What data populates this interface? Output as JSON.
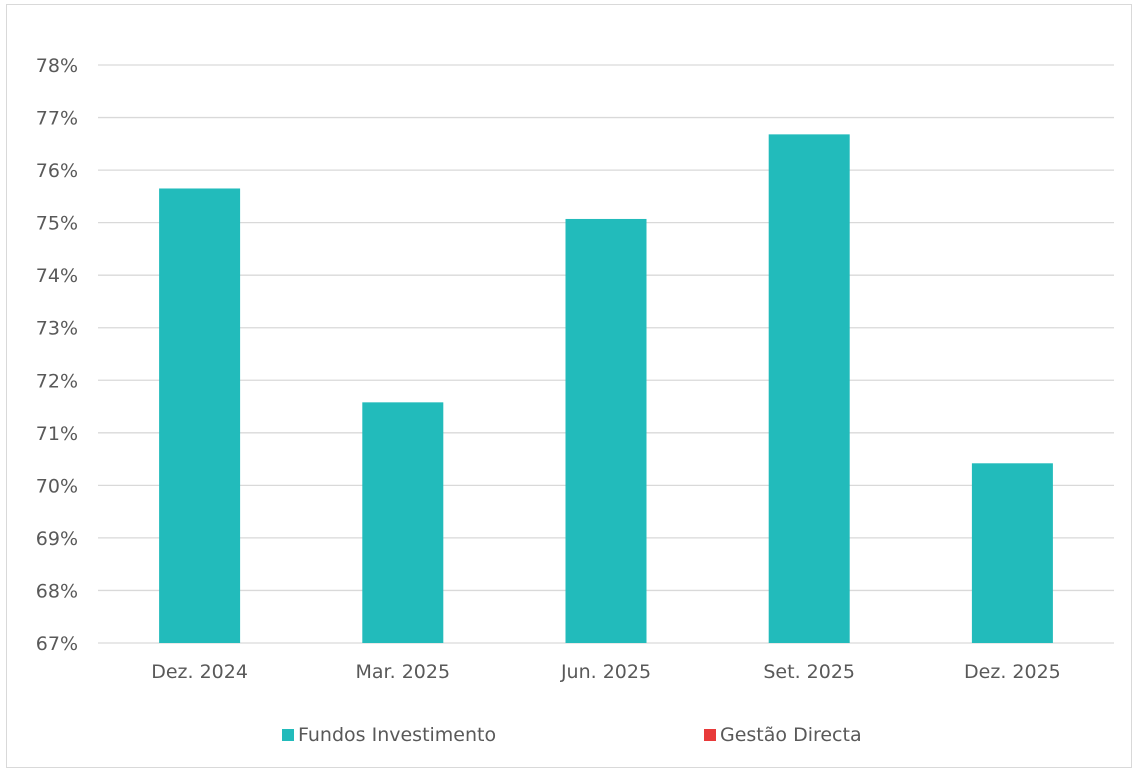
{
  "colors": {
    "background": "#ffffff",
    "gridline": "#d9d9d9",
    "axis_text": "#595959",
    "fundos": "#22bbbb",
    "gestao": "#e83a3a"
  },
  "chart_data": {
    "type": "bar",
    "title": "",
    "xlabel": "",
    "ylabel": "",
    "categories": [
      "Dez. 2024",
      "Mar. 2025",
      "Jun. 2025",
      "Set. 2025",
      "Dez. 2025"
    ],
    "ylim": [
      67,
      78
    ],
    "yticks": [
      "67%",
      "68%",
      "69%",
      "70%",
      "71%",
      "72%",
      "73%",
      "74%",
      "75%",
      "76%",
      "77%",
      "78%"
    ],
    "grid": true,
    "legend_position": "bottom",
    "series": [
      {
        "name": "Fundos Investimento",
        "color": "#22bbbb",
        "values": [
          75.65,
          71.58,
          75.07,
          76.68,
          70.42
        ]
      },
      {
        "name": "Gestão Directa",
        "color": "#e83a3a",
        "values": [
          null,
          null,
          null,
          null,
          null
        ]
      }
    ]
  }
}
